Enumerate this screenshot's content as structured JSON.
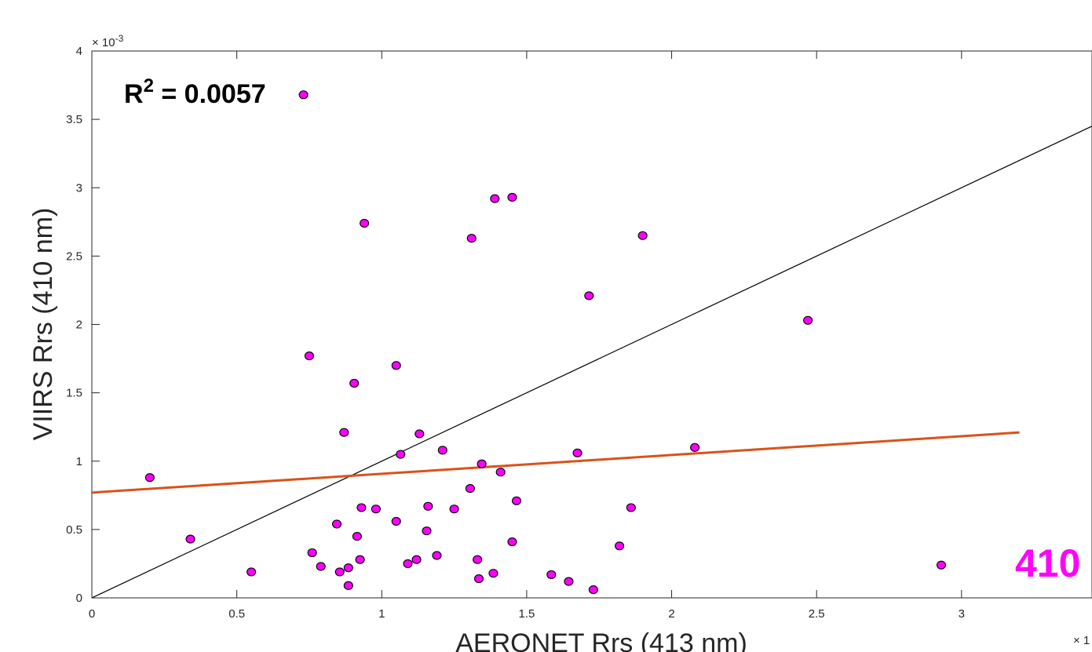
{
  "chart_data": {
    "type": "scatter",
    "xlabel": "AERONET Rrs (413 nm)",
    "ylabel": "VIIRS Rrs (410 nm)",
    "x_multiplier": "× 1",
    "y_multiplier_base": "× 10",
    "y_multiplier_exp": "-3",
    "xlim": [
      0,
      3.45
    ],
    "ylim": [
      0,
      4
    ],
    "x_ticks": [
      0,
      0.5,
      1,
      1.5,
      2,
      2.5,
      3
    ],
    "x_tick_labels": [
      "0",
      "0.5",
      "1",
      "1.5",
      "2",
      "2.5",
      "3"
    ],
    "y_ticks": [
      0,
      0.5,
      1,
      1.5,
      2,
      2.5,
      3,
      3.5,
      4
    ],
    "y_tick_labels": [
      "0",
      "0.5",
      "1",
      "1.5",
      "2",
      "2.5",
      "3",
      "3.5",
      "4"
    ],
    "annotation": {
      "prefix": "R",
      "sup": "2",
      "suffix": " = 0.0057"
    },
    "band_label": "410",
    "colors": {
      "marker": "#ff00ff",
      "fit_line": "#d95319",
      "one_to_one": "#000000",
      "band_label": "#ff00ff"
    },
    "one_to_one_line": {
      "x": [
        0,
        3.45
      ],
      "y": [
        0,
        3.45
      ]
    },
    "fit_line": {
      "x": [
        0,
        3.2
      ],
      "y": [
        0.77,
        1.21
      ]
    },
    "points": [
      [
        0.2,
        0.88
      ],
      [
        0.34,
        0.43
      ],
      [
        0.55,
        0.19
      ],
      [
        0.73,
        3.68
      ],
      [
        0.75,
        1.77
      ],
      [
        0.76,
        0.33
      ],
      [
        0.79,
        0.23
      ],
      [
        0.845,
        0.54
      ],
      [
        0.855,
        0.19
      ],
      [
        0.87,
        1.21
      ],
      [
        0.885,
        0.09
      ],
      [
        0.885,
        0.22
      ],
      [
        0.905,
        1.57
      ],
      [
        0.915,
        0.45
      ],
      [
        0.925,
        0.28
      ],
      [
        0.93,
        0.66
      ],
      [
        0.94,
        2.74
      ],
      [
        0.98,
        0.65
      ],
      [
        1.05,
        1.7
      ],
      [
        1.05,
        0.56
      ],
      [
        1.065,
        1.05
      ],
      [
        1.09,
        0.25
      ],
      [
        1.12,
        0.28
      ],
      [
        1.13,
        1.2
      ],
      [
        1.155,
        0.49
      ],
      [
        1.16,
        0.67
      ],
      [
        1.19,
        0.31
      ],
      [
        1.21,
        1.08
      ],
      [
        1.25,
        0.65
      ],
      [
        1.305,
        0.8
      ],
      [
        1.31,
        2.63
      ],
      [
        1.33,
        0.28
      ],
      [
        1.335,
        0.14
      ],
      [
        1.345,
        0.98
      ],
      [
        1.385,
        0.18
      ],
      [
        1.39,
        2.92
      ],
      [
        1.41,
        0.92
      ],
      [
        1.45,
        2.93
      ],
      [
        1.45,
        0.41
      ],
      [
        1.465,
        0.71
      ],
      [
        1.585,
        0.17
      ],
      [
        1.645,
        0.12
      ],
      [
        1.675,
        1.06
      ],
      [
        1.715,
        2.21
      ],
      [
        1.73,
        0.06
      ],
      [
        1.82,
        0.38
      ],
      [
        1.86,
        0.66
      ],
      [
        1.9,
        2.65
      ],
      [
        2.08,
        1.1
      ],
      [
        2.47,
        2.03
      ],
      [
        2.93,
        0.24
      ]
    ]
  }
}
